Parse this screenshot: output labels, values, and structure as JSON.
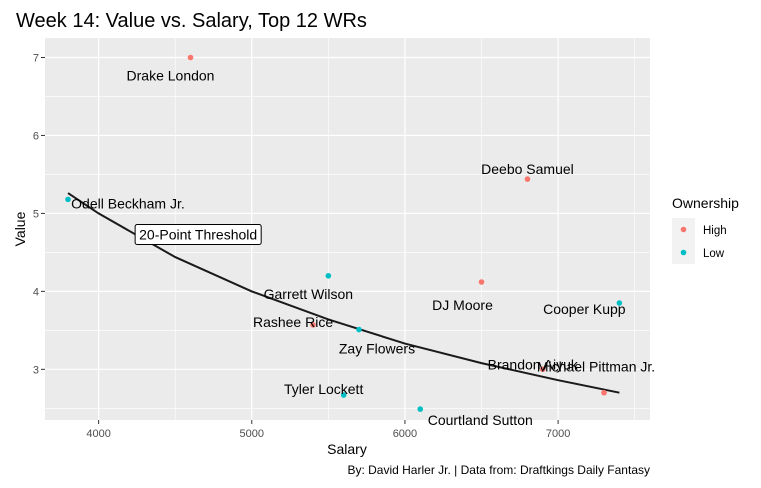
{
  "chart_data": {
    "type": "scatter",
    "title": "Week 14: Value vs. Salary, Top 12 WRs",
    "xlabel": "Salary",
    "ylabel": "Value",
    "caption": "By: David Harler Jr. | Data from: Draftkings Daily Fantasy",
    "xlim": [
      3650,
      7600
    ],
    "ylim": [
      2.35,
      7.25
    ],
    "xticks": [
      4000,
      5000,
      6000,
      7000
    ],
    "yticks": [
      3,
      4,
      5,
      6,
      7
    ],
    "grid": true,
    "legend": {
      "title": "Ownership",
      "placement": "right",
      "entries": [
        {
          "name": "High",
          "color": "#F8766D"
        },
        {
          "name": "Low",
          "color": "#00BFC4"
        }
      ]
    },
    "annotation": "20-Point Threshold",
    "annotation_anchor": [
      4650,
      4.73
    ],
    "points": [
      {
        "label": "Drake London",
        "x": 4600,
        "y": 7.0,
        "group": "High"
      },
      {
        "label": "Deebo Samuel",
        "x": 6800,
        "y": 5.44,
        "group": "High"
      },
      {
        "label": "Odell Beckham Jr.",
        "x": 3800,
        "y": 5.18,
        "group": "Low"
      },
      {
        "label": "Garrett Wilson",
        "x": 5500,
        "y": 4.2,
        "group": "Low"
      },
      {
        "label": "DJ Moore",
        "x": 6500,
        "y": 4.12,
        "group": "High"
      },
      {
        "label": "Cooper Kupp",
        "x": 7400,
        "y": 3.85,
        "group": "Low"
      },
      {
        "label": "Rashee Rice",
        "x": 5400,
        "y": 3.57,
        "group": "High"
      },
      {
        "label": "Zay Flowers",
        "x": 5700,
        "y": 3.51,
        "group": "Low"
      },
      {
        "label": "Brandon Aiyuk",
        "x": 6900,
        "y": 3.0,
        "group": "High"
      },
      {
        "label": "Michael Pittman Jr.",
        "x": 7300,
        "y": 2.7,
        "group": "High"
      },
      {
        "label": "Tyler Lockett",
        "x": 5600,
        "y": 2.67,
        "group": "Low"
      },
      {
        "label": "Courtland Sutton",
        "x": 6100,
        "y": 2.49,
        "group": "Low"
      }
    ],
    "threshold_curve": {
      "name": "20-Point Threshold",
      "x": [
        3800,
        4000,
        4500,
        5000,
        5500,
        6000,
        6500,
        7000,
        7400
      ],
      "y": [
        5.26,
        5.0,
        4.44,
        4.0,
        3.64,
        3.33,
        3.08,
        2.86,
        2.7
      ]
    }
  }
}
